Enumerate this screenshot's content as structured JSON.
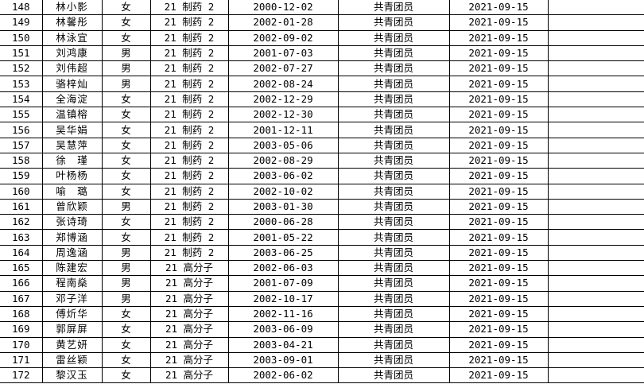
{
  "rows": [
    {
      "no": "148",
      "name": "林小影",
      "gender": "女",
      "class": "21 制药 2",
      "birth": "2000-12-02",
      "status": "共青团员",
      "date": "2021-09-15"
    },
    {
      "no": "149",
      "name": "林馨彤",
      "gender": "女",
      "class": "21 制药 2",
      "birth": "2002-01-28",
      "status": "共青团员",
      "date": "2021-09-15"
    },
    {
      "no": "150",
      "name": "林泳宜",
      "gender": "女",
      "class": "21 制药 2",
      "birth": "2002-09-02",
      "status": "共青团员",
      "date": "2021-09-15"
    },
    {
      "no": "151",
      "name": "刘鸿康",
      "gender": "男",
      "class": "21 制药 2",
      "birth": "2001-07-03",
      "status": "共青团员",
      "date": "2021-09-15"
    },
    {
      "no": "152",
      "name": "刘伟超",
      "gender": "男",
      "class": "21 制药 2",
      "birth": "2002-07-27",
      "status": "共青团员",
      "date": "2021-09-15"
    },
    {
      "no": "153",
      "name": "骆梓灿",
      "gender": "男",
      "class": "21 制药 2",
      "birth": "2002-08-24",
      "status": "共青团员",
      "date": "2021-09-15"
    },
    {
      "no": "154",
      "name": "全海淀",
      "gender": "女",
      "class": "21 制药 2",
      "birth": "2002-12-29",
      "status": "共青团员",
      "date": "2021-09-15"
    },
    {
      "no": "155",
      "name": "温镇榕",
      "gender": "女",
      "class": "21 制药 2",
      "birth": "2002-12-30",
      "status": "共青团员",
      "date": "2021-09-15"
    },
    {
      "no": "156",
      "name": "吴华娟",
      "gender": "女",
      "class": "21 制药 2",
      "birth": "2001-12-11",
      "status": "共青团员",
      "date": "2021-09-15"
    },
    {
      "no": "157",
      "name": "吴慧萍",
      "gender": "女",
      "class": "21 制药 2",
      "birth": "2003-05-06",
      "status": "共青团员",
      "date": "2021-09-15"
    },
    {
      "no": "158",
      "name": "徐　瑾",
      "gender": "女",
      "class": "21 制药 2",
      "birth": "2002-08-29",
      "status": "共青团员",
      "date": "2021-09-15"
    },
    {
      "no": "159",
      "name": "叶杨杨",
      "gender": "女",
      "class": "21 制药 2",
      "birth": "2003-06-02",
      "status": "共青团员",
      "date": "2021-09-15"
    },
    {
      "no": "160",
      "name": "喻　璐",
      "gender": "女",
      "class": "21 制药 2",
      "birth": "2002-10-02",
      "status": "共青团员",
      "date": "2021-09-15"
    },
    {
      "no": "161",
      "name": "曾欣颖",
      "gender": "男",
      "class": "21 制药 2",
      "birth": "2003-01-30",
      "status": "共青团员",
      "date": "2021-09-15"
    },
    {
      "no": "162",
      "name": "张诗琦",
      "gender": "女",
      "class": "21 制药 2",
      "birth": "2000-06-28",
      "status": "共青团员",
      "date": "2021-09-15"
    },
    {
      "no": "163",
      "name": "郑博涵",
      "gender": "女",
      "class": "21 制药 2",
      "birth": "2001-05-22",
      "status": "共青团员",
      "date": "2021-09-15"
    },
    {
      "no": "164",
      "name": "周逸涵",
      "gender": "男",
      "class": "21 制药 2",
      "birth": "2003-06-25",
      "status": "共青团员",
      "date": "2021-09-15"
    },
    {
      "no": "165",
      "name": "陈建宏",
      "gender": "男",
      "class": "21 高分子",
      "birth": "2002-06-03",
      "status": "共青团员",
      "date": "2021-09-15"
    },
    {
      "no": "166",
      "name": "程南燊",
      "gender": "男",
      "class": "21 高分子",
      "birth": "2001-07-09",
      "status": "共青团员",
      "date": "2021-09-15"
    },
    {
      "no": "167",
      "name": "邓子洋",
      "gender": "男",
      "class": "21 高分子",
      "birth": "2002-10-17",
      "status": "共青团员",
      "date": "2021-09-15"
    },
    {
      "no": "168",
      "name": "傅炘华",
      "gender": "女",
      "class": "21 高分子",
      "birth": "2002-11-16",
      "status": "共青团员",
      "date": "2021-09-15"
    },
    {
      "no": "169",
      "name": "郭屏屏",
      "gender": "女",
      "class": "21 高分子",
      "birth": "2003-06-09",
      "status": "共青团员",
      "date": "2021-09-15"
    },
    {
      "no": "170",
      "name": "黄艺妍",
      "gender": "女",
      "class": "21 高分子",
      "birth": "2003-04-21",
      "status": "共青团员",
      "date": "2021-09-15"
    },
    {
      "no": "171",
      "name": "雷丝颖",
      "gender": "女",
      "class": "21 高分子",
      "birth": "2003-09-01",
      "status": "共青团员",
      "date": "2021-09-15"
    },
    {
      "no": "172",
      "name": "黎汉玉",
      "gender": "女",
      "class": "21 高分子",
      "birth": "2002-06-02",
      "status": "共青团员",
      "date": "2021-09-15"
    }
  ]
}
